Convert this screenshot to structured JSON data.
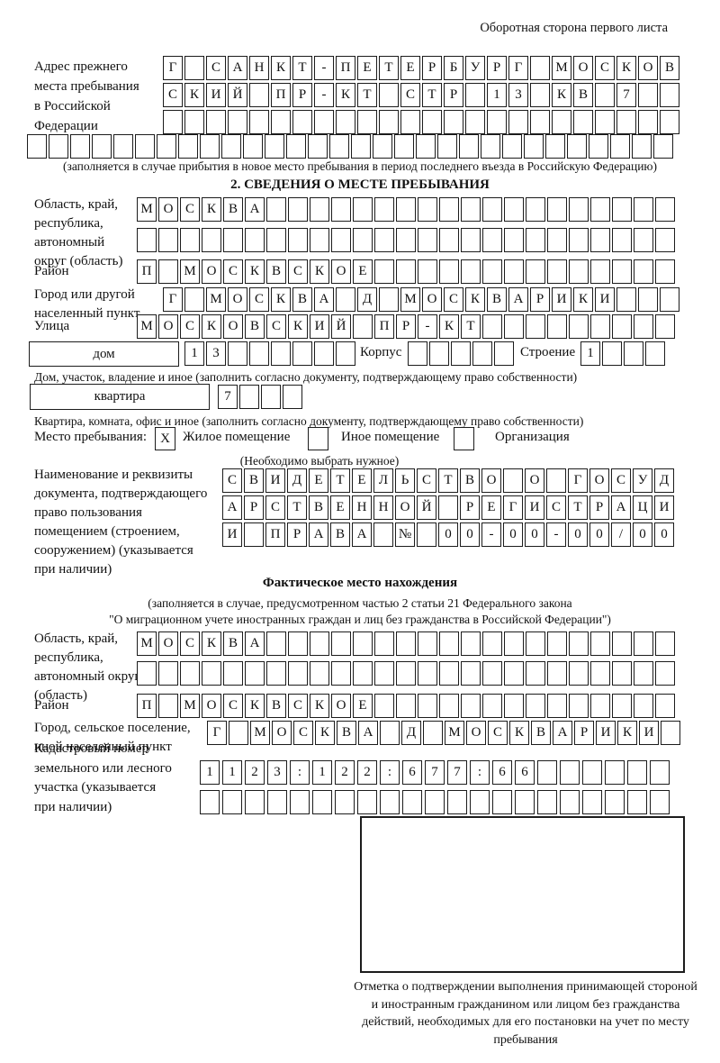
{
  "page": {
    "header_note": "Оборотная сторона первого листа"
  },
  "prev_address": {
    "label_lines": [
      "Адрес прежнего",
      "места пребывания",
      "в Российской",
      "Федерации"
    ],
    "rows": [
      {
        "text": "Г САНКТ-ПЕТЕРБУРГ МОСКОВ",
        "count": 24
      },
      {
        "text": "СКИЙ ПР-КТ СТР 13 КВ 7",
        "count": 24
      },
      {
        "text": "",
        "count": 24
      },
      {
        "text": "",
        "count": 30
      }
    ],
    "note": "(заполняется в случае прибытия в новое место пребывания в период последнего въезда в Российскую Федерацию)"
  },
  "section2": {
    "title": "2. СВЕДЕНИЯ О МЕСТЕ ПРЕБЫВАНИЯ",
    "region": {
      "label_lines": [
        "Область, край,",
        "республика,",
        "автономный",
        "округ (область)"
      ],
      "rows": [
        {
          "text": "МОСКВА",
          "count": 25
        },
        {
          "text": "",
          "count": 25
        }
      ]
    },
    "district": {
      "label": "Район",
      "row": {
        "text": "П МОСКВСКОЕ",
        "count": 25
      }
    },
    "city": {
      "label_lines": [
        "Город или другой",
        "населенный пункт"
      ],
      "row": {
        "text": "Г МОСКВА Д МОСКВАРИКИ",
        "count": 24
      }
    },
    "street": {
      "label": "Улица",
      "row": {
        "text": "МОСКОВСКИЙ ПР-КТ",
        "count": 25
      }
    },
    "house": {
      "label": "дом",
      "row": {
        "text": "13",
        "count": 8
      }
    },
    "korpus": {
      "label": "Корпус",
      "row": {
        "text": "",
        "count": 5
      }
    },
    "stroenie": {
      "label": "Строение",
      "row": {
        "text": "1",
        "count": 4
      }
    },
    "house_note": "Дом, участок, владение и иное (заполнить согласно документу, подтверждающему право собственности)",
    "apartment": {
      "label": "квартира",
      "row": {
        "text": "7",
        "count": 4
      }
    },
    "apartment_note": "Квартира, комната, офис и иное (заполнить согласно документу, подтверждающему право собственности)",
    "stay": {
      "label": "Место пребывания:",
      "options": [
        {
          "label": "Жилое помещение",
          "checked": "X"
        },
        {
          "label": "Иное помещение",
          "checked": ""
        },
        {
          "label": "Организация",
          "checked": ""
        }
      ],
      "note": "(Необходимо выбрать нужное)"
    },
    "document": {
      "label_lines": [
        "Наименование и реквизиты",
        "документа, подтверждающего",
        "право пользования",
        "помещением (строением,",
        "сооружением) (указывается",
        "при наличии)"
      ],
      "rows": [
        {
          "text": "СВИДЕТЕЛЬСТВО О ГОСУД",
          "count": 21
        },
        {
          "text": "АРСТВЕННОЙ РЕГИСТРАЦИ",
          "count": 21
        },
        {
          "text": "И ПРАВА № 00-00-00/000",
          "count": 21
        }
      ]
    }
  },
  "actual": {
    "title": "Фактическое место нахождения",
    "note1": "(заполняется в случае, предусмотренном частью 2 статьи 21 Федерального закона",
    "note2": "\"О миграционном учете иностранных граждан и лиц без гражданства в Российской Федерации\")",
    "region": {
      "label_lines": [
        "Область, край,",
        "республика,",
        "автономный округ",
        "(область)"
      ],
      "rows": [
        {
          "text": "МОСКВА",
          "count": 25
        },
        {
          "text": "",
          "count": 25
        }
      ]
    },
    "district": {
      "label": "Район",
      "row": {
        "text": "П МОСКВСКОЕ",
        "count": 25
      }
    },
    "city": {
      "label_lines": [
        "Город, сельское поселение,",
        "иной населенный пункт"
      ],
      "row": {
        "text": "Г МОСКВА Д МОСКВАРИКИ",
        "count": 22
      }
    },
    "cadastral": {
      "label_lines": [
        "Кадастровый номер",
        "земельного или лесного",
        "участка (указывается",
        "при наличии)"
      ],
      "rows": [
        {
          "text": "1123:122:677:66",
          "count": 21
        },
        {
          "text": "",
          "count": 21
        }
      ]
    },
    "mark_note": "Отметка о подтверждении выполнения принимающей стороной и иностранным гражданином или лицом без гражданства действий, необходимых для его постановки на учет по месту пребывания"
  }
}
